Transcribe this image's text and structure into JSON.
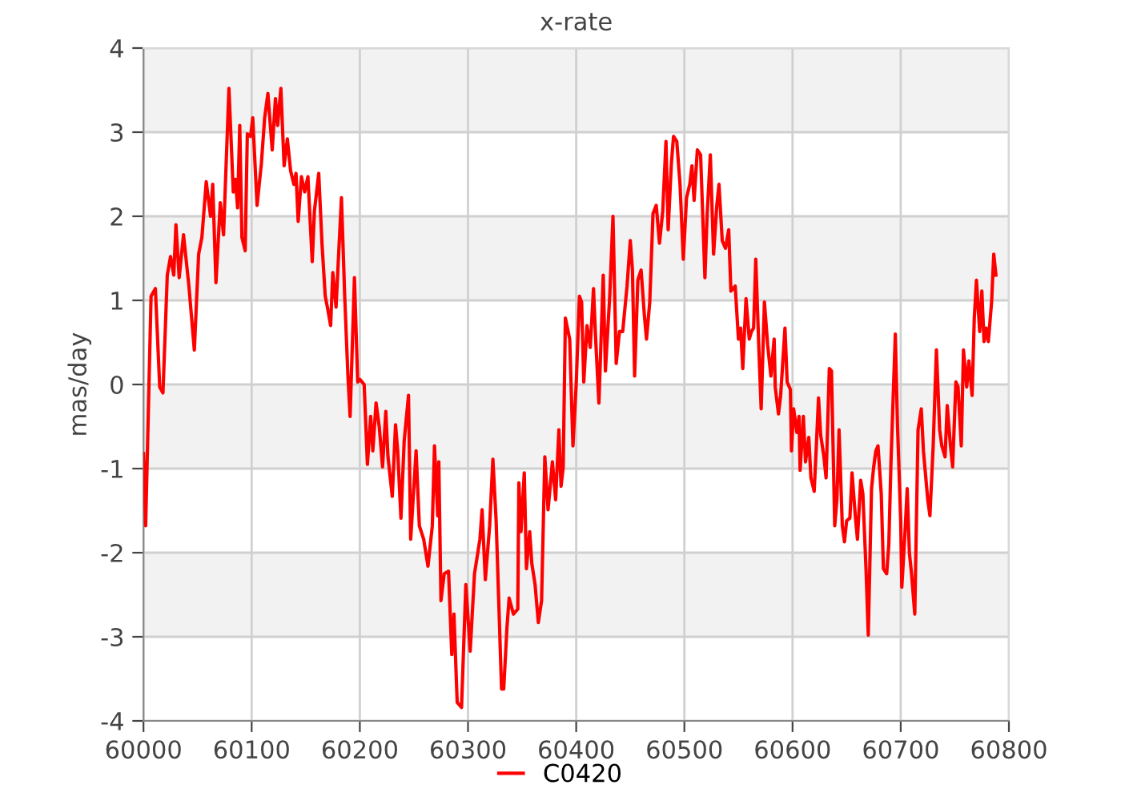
{
  "chart_data": {
    "type": "line",
    "title": "x-rate",
    "ylabel": "mas/day",
    "xlim": [
      60000,
      60800
    ],
    "xticks": [
      60000,
      60100,
      60200,
      60300,
      60400,
      60500,
      60600,
      60700,
      60800
    ],
    "ylim": [
      -4,
      4
    ],
    "yticks": [
      -4,
      -3,
      -2,
      -1,
      0,
      1,
      2,
      3,
      4
    ],
    "grid": true,
    "legend": "bottom",
    "marker": "none",
    "line_style": "solid",
    "bands": [
      {
        "axis": "y",
        "from": 3,
        "to": 4,
        "color": "#f2f2f2"
      },
      {
        "axis": "y",
        "from": 1,
        "to": 2,
        "color": "#f2f2f2"
      },
      {
        "axis": "y",
        "from": -1,
        "to": 0,
        "color": "#f2f2f2"
      },
      {
        "axis": "y",
        "from": -3,
        "to": -2,
        "color": "#f2f2f2"
      }
    ],
    "series": [
      {
        "name": "C0420",
        "color": "#ff0000",
        "x": [
          60000,
          60002,
          60007,
          60011,
          60015,
          60018,
          60022,
          60025,
          60028,
          60030,
          60033,
          60037,
          60042,
          60047,
          60051,
          60054,
          60058,
          60062,
          60064,
          60067,
          60071,
          60074,
          60079,
          60083,
          60085,
          60087,
          60089,
          60091,
          60094,
          60096,
          60099,
          60101,
          60105,
          60109,
          60112,
          60115,
          60119,
          60122,
          60124,
          60127,
          60130,
          60133,
          60136,
          60139,
          60141,
          60143,
          60146,
          60149,
          60152,
          60156,
          60158,
          60162,
          60165,
          60168,
          60170,
          60173,
          60175,
          60178,
          60183,
          60186,
          60189,
          60191,
          60195,
          60198,
          60200,
          60204,
          60207,
          60210,
          60212,
          60215,
          60218,
          60221,
          60224,
          60226,
          60230,
          60233,
          60235,
          60238,
          60241,
          60245,
          60247,
          60252,
          60255,
          60259,
          60263,
          60267,
          60269,
          60272,
          60273,
          60275,
          60278,
          60282,
          60285,
          60287,
          60290,
          60294,
          60298,
          60302,
          60306,
          60311,
          60313,
          60316,
          60320,
          60323,
          60326,
          60331,
          60333,
          60336,
          60338,
          60342,
          60346,
          60347,
          60349,
          60352,
          60354,
          60357,
          60359,
          60362,
          60365,
          60368,
          60371,
          60374,
          60378,
          60381,
          60384,
          60386,
          60388,
          60390,
          60394,
          60397,
          60400,
          60403,
          60405,
          60407,
          60410,
          60413,
          60416,
          60418,
          60421,
          60425,
          60427,
          60431,
          60434,
          60437,
          60440,
          60443,
          60447,
          60450,
          60452,
          60454,
          60457,
          60460,
          60463,
          60465,
          60468,
          60471,
          60474,
          60477,
          60480,
          60483,
          60485,
          60488,
          60490,
          60493,
          60496,
          60499,
          60502,
          60505,
          60507,
          60509,
          60512,
          60515,
          60519,
          60521,
          60524,
          60527,
          60530,
          60532,
          60535,
          60538,
          60541,
          60543,
          60547,
          60550,
          60552,
          60554,
          60557,
          60560,
          60562,
          60564,
          60566,
          60569,
          60571,
          60574,
          60577,
          60580,
          60583,
          60584,
          60587,
          60589,
          60593,
          60595,
          60598,
          60599,
          60601,
          60604,
          60606,
          60607,
          60610,
          60612,
          60615,
          60617,
          60620,
          60622,
          60624,
          60626,
          60629,
          60631,
          60634,
          60636,
          60639,
          60641,
          60643,
          60646,
          60648,
          60650,
          60653,
          60655,
          60658,
          60660,
          60663,
          60665,
          60668,
          60670,
          60673,
          60675,
          60677,
          60679,
          60682,
          60684,
          60687,
          60689,
          60691,
          60693,
          60695,
          60697,
          60700,
          60701,
          60704,
          60706,
          60708,
          60710,
          60713,
          60716,
          60719,
          60721,
          60725,
          60727,
          60730,
          60733,
          60736,
          60738,
          60741,
          60743,
          60746,
          60748,
          60751,
          60753,
          60756,
          60758,
          60761,
          60763,
          60766,
          60768,
          60770,
          60773,
          60775,
          60777,
          60779,
          60781,
          60784,
          60786,
          60788
        ],
        "values": [
          -0.82,
          -1.68,
          1.05,
          1.14,
          -0.03,
          -0.1,
          1.3,
          1.52,
          1.3,
          1.9,
          1.27,
          1.78,
          1.17,
          0.41,
          1.55,
          1.75,
          2.41,
          2.0,
          2.38,
          1.21,
          2.16,
          1.78,
          3.52,
          2.29,
          2.44,
          2.1,
          3.08,
          1.75,
          1.59,
          2.98,
          2.95,
          3.17,
          2.13,
          2.63,
          3.17,
          3.46,
          2.79,
          3.4,
          3.08,
          3.52,
          2.6,
          2.92,
          2.54,
          2.38,
          2.51,
          1.94,
          2.47,
          2.29,
          2.47,
          1.46,
          2.06,
          2.51,
          1.68,
          1.05,
          0.92,
          0.7,
          1.33,
          0.92,
          2.22,
          1.05,
          0.1,
          -0.38,
          1.27,
          0.03,
          0.06,
          0.0,
          -0.95,
          -0.38,
          -0.79,
          -0.22,
          -0.51,
          -0.98,
          -0.32,
          -0.86,
          -1.33,
          -0.48,
          -0.79,
          -1.59,
          -0.67,
          -0.13,
          -1.84,
          -0.79,
          -1.68,
          -1.84,
          -2.16,
          -1.68,
          -0.73,
          -1.56,
          -0.92,
          -2.57,
          -2.25,
          -2.22,
          -3.21,
          -2.73,
          -3.78,
          -3.84,
          -2.38,
          -3.17,
          -2.25,
          -1.84,
          -1.49,
          -2.32,
          -1.68,
          -0.89,
          -1.62,
          -3.62,
          -3.62,
          -2.89,
          -2.54,
          -2.73,
          -2.67,
          -1.17,
          -1.75,
          -1.05,
          -2.19,
          -1.75,
          -2.13,
          -2.38,
          -2.83,
          -2.57,
          -0.86,
          -1.49,
          -0.92,
          -1.37,
          -0.54,
          -1.21,
          -0.98,
          0.79,
          0.54,
          -0.73,
          0.0,
          1.05,
          0.98,
          0.03,
          0.7,
          0.44,
          1.14,
          0.54,
          -0.22,
          1.3,
          0.16,
          1.05,
          2.0,
          0.25,
          0.63,
          0.63,
          1.17,
          1.71,
          1.36,
          0.1,
          1.24,
          1.36,
          0.83,
          0.54,
          0.98,
          2.03,
          2.13,
          1.68,
          2.06,
          2.89,
          1.84,
          2.63,
          2.95,
          2.89,
          2.38,
          1.49,
          2.22,
          2.38,
          2.6,
          2.19,
          2.79,
          2.73,
          1.27,
          2.0,
          2.73,
          1.55,
          2.13,
          2.38,
          1.71,
          1.62,
          1.84,
          1.11,
          1.17,
          0.54,
          0.67,
          0.19,
          1.02,
          0.54,
          0.63,
          0.67,
          1.49,
          0.38,
          -0.29,
          0.98,
          0.47,
          0.1,
          0.54,
          -0.03,
          -0.35,
          -0.13,
          0.67,
          0.03,
          -0.06,
          -0.79,
          -0.29,
          -0.57,
          -0.38,
          -1.02,
          -0.38,
          -0.92,
          -0.63,
          -1.11,
          -1.27,
          -0.73,
          -0.16,
          -0.6,
          -0.86,
          -1.11,
          0.19,
          0.16,
          -1.68,
          -1.37,
          -0.54,
          -1.68,
          -1.87,
          -1.62,
          -1.59,
          -1.05,
          -1.56,
          -1.84,
          -1.14,
          -1.3,
          -2.22,
          -2.98,
          -1.24,
          -0.98,
          -0.79,
          -0.73,
          -1.3,
          -2.19,
          -2.25,
          -1.9,
          -0.92,
          -0.16,
          0.6,
          -0.48,
          -1.62,
          -2.41,
          -1.75,
          -1.24,
          -2.0,
          -2.25,
          -2.73,
          -0.54,
          -0.29,
          -0.79,
          -1.37,
          -1.56,
          -0.73,
          0.41,
          -0.54,
          -0.73,
          -0.86,
          -0.25,
          -0.73,
          -0.98,
          0.03,
          -0.03,
          -0.73,
          0.41,
          -0.03,
          0.28,
          -0.13,
          0.79,
          1.24,
          0.63,
          1.11,
          0.51,
          0.67,
          0.51,
          0.98,
          1.55,
          1.3
        ]
      }
    ]
  }
}
